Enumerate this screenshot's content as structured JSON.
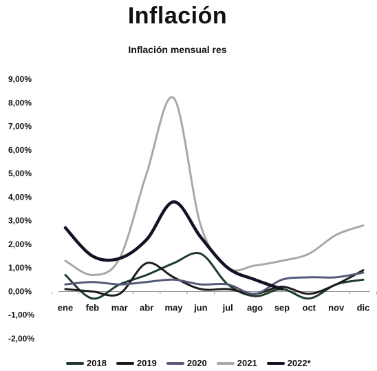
{
  "title": "Inflación",
  "chart_data": {
    "type": "line",
    "title": "Inflación",
    "subtitle": "Inflación mensual res",
    "categories": [
      "ene",
      "feb",
      "mar",
      "abr",
      "may",
      "jun",
      "jul",
      "ago",
      "sep",
      "oct",
      "nov",
      "dic"
    ],
    "yticks": [
      "9,00%",
      "8,00%",
      "7,00%",
      "6,00%",
      "5,00%",
      "4,00%",
      "3,00%",
      "2,00%",
      "1,00%",
      "0,00%",
      "-1,00%",
      "-2,00%"
    ],
    "ylim": [
      -2,
      9
    ],
    "grid": false,
    "legend_position": "bottom",
    "series": [
      {
        "name": "2018",
        "color": "#1e3a2a",
        "values": [
          0.7,
          -0.3,
          0.3,
          0.7,
          1.2,
          1.6,
          0.3,
          -0.2,
          0.1,
          -0.3,
          0.3,
          0.5
        ]
      },
      {
        "name": "2019",
        "color": "#1c1c1c",
        "values": [
          0.1,
          0.0,
          -0.1,
          1.2,
          0.6,
          0.1,
          0.1,
          -0.1,
          0.2,
          -0.1,
          0.3,
          0.9
        ]
      },
      {
        "name": "2020",
        "color": "#555a78",
        "values": [
          0.3,
          0.4,
          0.3,
          0.4,
          0.5,
          0.3,
          0.3,
          -0.1,
          0.5,
          0.6,
          0.6,
          0.8
        ]
      },
      {
        "name": "2021",
        "color": "#a8a8a8",
        "values": [
          1.3,
          0.7,
          1.4,
          5.0,
          8.2,
          2.8,
          1.0,
          1.1,
          1.3,
          1.6,
          2.4,
          2.8
        ]
      },
      {
        "name": "2022*",
        "color": "#121224",
        "values": [
          2.7,
          1.5,
          1.4,
          2.2,
          3.8,
          2.3,
          1.0,
          0.5,
          0.1,
          null,
          null,
          null
        ]
      }
    ]
  }
}
